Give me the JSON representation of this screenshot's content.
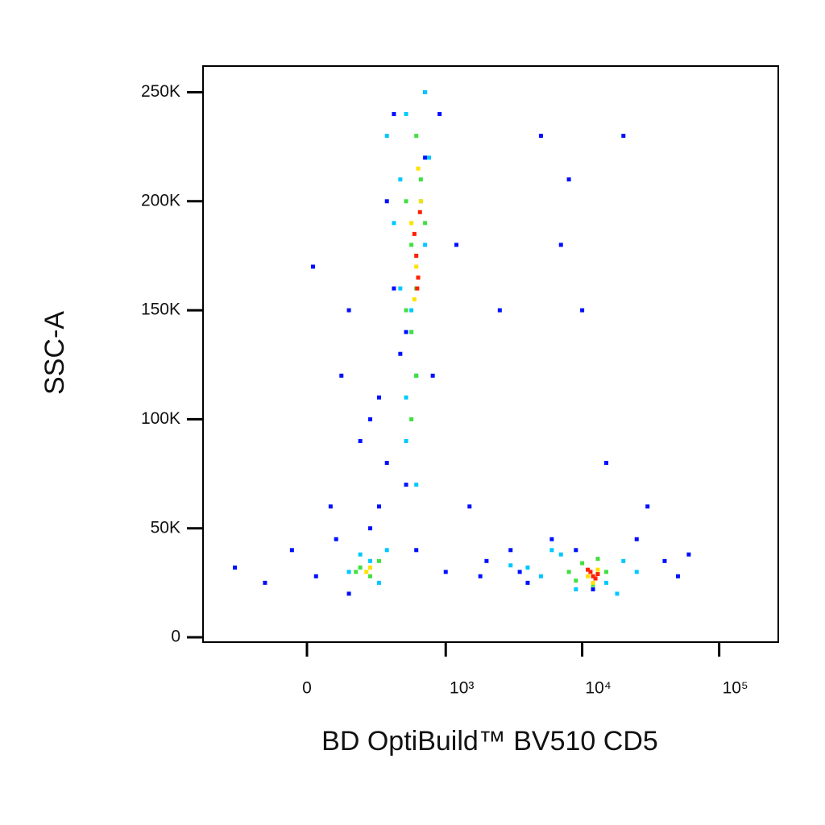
{
  "chart_data": {
    "type": "scatter",
    "x_label": "BD OptiBuild™ BV510 CD5",
    "y_label": "SSC-A",
    "xscale": "biexponential",
    "xlim": [
      -545,
      270000
    ],
    "xticks": [
      0,
      {
        "value": 1000,
        "label": "10³"
      },
      {
        "value": 10000,
        "label": "10⁴"
      },
      {
        "value": 100000,
        "label": "10⁵"
      }
    ],
    "ylim": [
      -2200,
      262000
    ],
    "yticks": [
      0,
      {
        "value": 50000,
        "label": "50K"
      },
      {
        "value": 100000,
        "label": "100K"
      },
      {
        "value": 150000,
        "label": "150K"
      },
      {
        "value": 200000,
        "label": "200K"
      },
      {
        "value": 250000,
        "label": "250K"
      }
    ],
    "series": [
      {
        "color": "#0010ff",
        "x": [
          -300,
          -150,
          -50,
          30,
          80,
          150,
          200,
          300,
          350,
          400,
          450,
          500,
          700,
          900,
          1200,
          1500,
          2000,
          2500,
          3000,
          4000,
          5000,
          6000,
          8000,
          10000,
          15000,
          20000,
          30000,
          40000,
          60000,
          20,
          100,
          250,
          350,
          600,
          800,
          1000,
          150,
          400,
          700,
          3500,
          9000,
          12000,
          25000,
          500,
          300,
          1800,
          7000,
          50000,
          250,
          120
        ],
        "y": [
          32000,
          25000,
          40000,
          28000,
          60000,
          150000,
          90000,
          110000,
          200000,
          240000,
          130000,
          70000,
          250000,
          240000,
          180000,
          60000,
          35000,
          150000,
          40000,
          25000,
          230000,
          45000,
          210000,
          150000,
          80000,
          230000,
          60000,
          35000,
          38000,
          170000,
          45000,
          100000,
          80000,
          40000,
          120000,
          30000,
          20000,
          160000,
          220000,
          30000,
          40000,
          22000,
          45000,
          140000,
          60000,
          28000,
          180000,
          28000,
          50000,
          120000
        ]
      },
      {
        "color": "#00c8ff",
        "x": [
          350,
          450,
          500,
          550,
          600,
          700,
          750,
          500,
          600,
          450,
          550,
          650,
          700,
          400,
          500,
          150,
          200,
          300,
          350,
          250,
          3000,
          5000,
          7000,
          9000,
          15000,
          20000,
          25000,
          6000,
          4000,
          18000
        ],
        "y": [
          230000,
          210000,
          240000,
          140000,
          120000,
          180000,
          220000,
          90000,
          70000,
          160000,
          150000,
          200000,
          250000,
          190000,
          110000,
          30000,
          38000,
          25000,
          40000,
          35000,
          33000,
          28000,
          38000,
          22000,
          25000,
          35000,
          30000,
          40000,
          32000,
          20000
        ]
      },
      {
        "color": "#40e040",
        "x": [
          500,
          550,
          600,
          650,
          550,
          600,
          500,
          700,
          600,
          550,
          200,
          250,
          300,
          180,
          8000,
          10000,
          12000,
          15000,
          9000,
          13000
        ],
        "y": [
          200000,
          180000,
          160000,
          210000,
          140000,
          230000,
          150000,
          190000,
          120000,
          100000,
          32000,
          28000,
          35000,
          30000,
          30000,
          34000,
          24000,
          30000,
          26000,
          36000
        ]
      },
      {
        "color": "#ffe000",
        "x": [
          550,
          600,
          650,
          580,
          620,
          250,
          230,
          11000,
          13000,
          12000
        ],
        "y": [
          190000,
          170000,
          200000,
          155000,
          215000,
          32000,
          30000,
          28000,
          31000,
          25000
        ]
      },
      {
        "color": "#ff2000",
        "x": [
          600,
          620,
          580,
          640,
          610,
          12000,
          11500,
          12500,
          13000,
          11000
        ],
        "y": [
          175000,
          165000,
          185000,
          195000,
          160000,
          28000,
          30000,
          27000,
          29000,
          31000
        ]
      }
    ]
  }
}
